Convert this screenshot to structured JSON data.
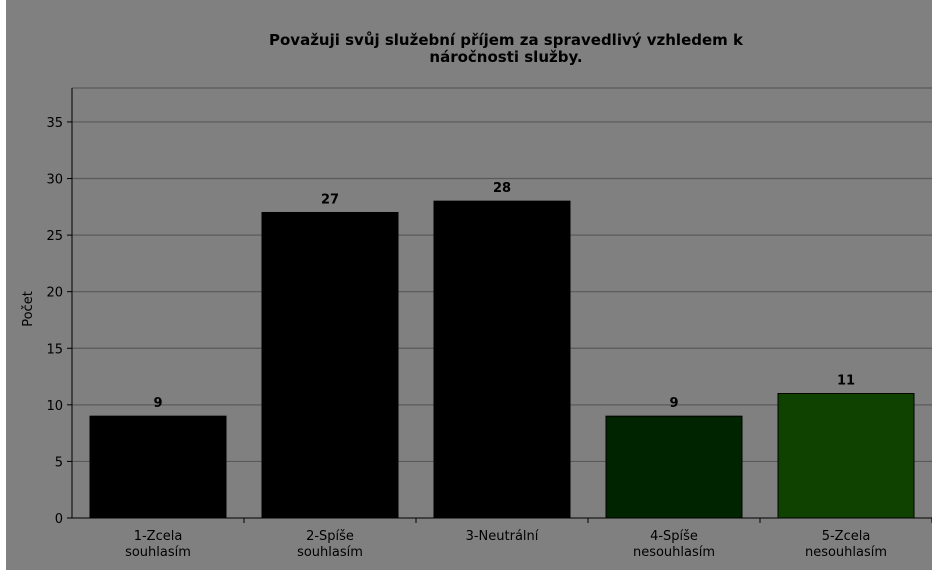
{
  "chart_data": {
    "type": "bar",
    "title_lines": [
      "Považuji svůj služební příjem za spravedlivý vzhledem k",
      "náročnosti služby."
    ],
    "xlabel": "",
    "ylabel": "Počet",
    "ylim": [
      0,
      38
    ],
    "yticks": [
      0,
      5,
      10,
      15,
      20,
      25,
      30,
      35
    ],
    "grid": true,
    "legend": "none",
    "categories": [
      [
        "1-Zcela",
        "souhlasím"
      ],
      [
        "2-Spíše",
        "souhlasím"
      ],
      [
        "3-Neutrální"
      ],
      [
        "4-Spíše",
        "nesouhlasím"
      ],
      [
        "5-Zcela",
        "nesouhlasím"
      ]
    ],
    "values": [
      9,
      27,
      28,
      9,
      11
    ],
    "data_labels": [
      "9",
      "27",
      "28",
      "9",
      "11"
    ],
    "colors": [
      "#000000",
      "#000000",
      "#000000",
      "#002400",
      "#0f4200"
    ],
    "background_color": "#808080",
    "grid_color": "#5a5a5a"
  }
}
